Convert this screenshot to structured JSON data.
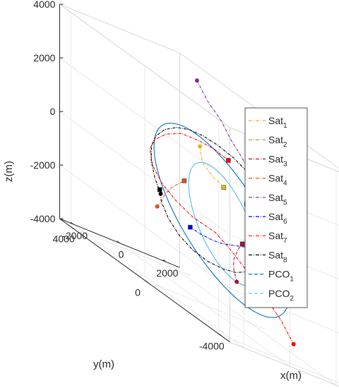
{
  "chart_data": {
    "type": "line",
    "projection": "3d",
    "xlabel": "x(m)",
    "ylabel": "y(m)",
    "zlabel": "z(m)",
    "x_ticks": [
      "-2000",
      "0",
      "2000"
    ],
    "y_ticks": [
      "4000",
      "0",
      "-4000"
    ],
    "z_ticks": [
      "4000",
      "2000",
      "0",
      "-2000",
      "-4000"
    ],
    "xlim": [
      -2600,
      2600
    ],
    "ylim": [
      -4600,
      4600
    ],
    "zlim": [
      -4000,
      4000
    ],
    "grid": true,
    "legend_position": "right",
    "legend": [
      {
        "base": "Sat",
        "sub": "1",
        "color": "#EDB120",
        "dash": "5,2,1,2"
      },
      {
        "base": "Sat",
        "sub": "2",
        "color": "#77AC30",
        "dash": "5,2,1,2"
      },
      {
        "base": "Sat",
        "sub": "3",
        "color": "#A2142F",
        "dash": "5,2,1,2"
      },
      {
        "base": "Sat",
        "sub": "4",
        "color": "#D95319",
        "dash": "5,2,1,2"
      },
      {
        "base": "Sat",
        "sub": "5",
        "color": "#7E2F8E",
        "dash": "5,2,1,2"
      },
      {
        "base": "Sat",
        "sub": "6",
        "color": "#0000FF",
        "dash": "5,2,1,2"
      },
      {
        "base": "Sat",
        "sub": "7",
        "color": "#FF0000",
        "dash": "5,2,1,2"
      },
      {
        "base": "Sat",
        "sub": "8",
        "color": "#000000",
        "dash": "5,2,1,2"
      },
      {
        "base": "PCO",
        "sub": "1",
        "color": "#0072BD",
        "dash": "5,3"
      },
      {
        "base": "PCO",
        "sub": "2",
        "color": "#4DBEEE",
        "dash": "5,3"
      }
    ],
    "series": [
      {
        "name": "Sat1",
        "color": "#EDB120",
        "start_marker": "dot",
        "end_marker": "square",
        "points": [
          [
            -450,
            -300,
            1900
          ],
          [
            -350,
            -250,
            1500
          ],
          [
            -200,
            -200,
            1250
          ],
          [
            -50,
            -300,
            1100
          ],
          [
            100,
            -350,
            950
          ],
          [
            350,
            -400,
            850
          ],
          [
            500,
            -400,
            750
          ]
        ]
      },
      {
        "name": "Sat2",
        "color": "#77AC30",
        "start_marker": "dot",
        "end_marker": "square",
        "points": [
          [
            2100,
            -2300,
            1700
          ],
          [
            1950,
            -2300,
            1450
          ],
          [
            1800,
            -2250,
            1250
          ],
          [
            1650,
            -2100,
            1050
          ],
          [
            1500,
            -1850,
            850
          ],
          [
            1350,
            -1500,
            700
          ],
          [
            1200,
            -1150,
            650
          ],
          [
            1050,
            -950,
            600
          ]
        ]
      },
      {
        "name": "Sat3",
        "color": "#A2142F",
        "start_marker": "dot",
        "end_marker": "square",
        "points": [
          [
            -300,
            -2100,
            -2200
          ],
          [
            -350,
            -2000,
            -1800
          ],
          [
            -200,
            -1800,
            -1500
          ],
          [
            0,
            -1700,
            -1250
          ],
          [
            200,
            -1600,
            -1000
          ],
          [
            300,
            -1650,
            -800
          ]
        ]
      },
      {
        "name": "Sat4",
        "color": "#D95319",
        "start_marker": "dot",
        "end_marker": "square",
        "points": [
          [
            -1900,
            200,
            -1100
          ],
          [
            -1650,
            300,
            -900
          ],
          [
            -1450,
            350,
            -550
          ],
          [
            -1200,
            300,
            -200
          ],
          [
            -1000,
            150,
            100
          ],
          [
            -850,
            50,
            300
          ]
        ]
      },
      {
        "name": "Sat5",
        "color": "#7E2F8E",
        "start_marker": "dot",
        "end_marker": "square",
        "points": [
          [
            -900,
            -700,
            4400
          ],
          [
            -450,
            -700,
            3800
          ],
          [
            0,
            -900,
            3300
          ],
          [
            300,
            -1000,
            2800
          ],
          [
            600,
            -1300,
            2300
          ],
          [
            750,
            -1600,
            1800
          ],
          [
            900,
            -2050,
            1300
          ],
          [
            1000,
            -2250,
            800
          ],
          [
            1050,
            -2350,
            600
          ]
        ]
      },
      {
        "name": "Sat6",
        "color": "#0000FF",
        "start_marker": "dot",
        "end_marker": "square",
        "points": [
          [
            1000,
            -3300,
            2800
          ],
          [
            1200,
            -3200,
            2300
          ],
          [
            1300,
            -3050,
            1700
          ],
          [
            1400,
            -2800,
            1200
          ],
          [
            1500,
            -2500,
            800
          ],
          [
            1550,
            -2250,
            500
          ],
          [
            1450,
            -2200,
            300
          ],
          [
            1300,
            -2350,
            100
          ],
          [
            1050,
            -2400,
            -100
          ],
          [
            800,
            -2350,
            -300
          ],
          [
            550,
            -2150,
            -600
          ],
          [
            300,
            -1900,
            -800
          ],
          [
            50,
            -1550,
            -1000
          ],
          [
            -150,
            -1150,
            -1200
          ],
          [
            -300,
            -800,
            -1300
          ],
          [
            -450,
            -350,
            -1350
          ],
          [
            -550,
            100,
            -1350
          ]
        ]
      },
      {
        "name": "Sat7",
        "color": "#FF0000",
        "start_marker": "dot",
        "end_marker": "square",
        "points": [
          [
            1200,
            -3300,
            -3400
          ],
          [
            1050,
            -2800,
            -2800
          ],
          [
            900,
            -2100,
            -2300
          ],
          [
            700,
            -1400,
            -1800
          ],
          [
            500,
            -800,
            -1400
          ],
          [
            300,
            -200,
            -1100
          ],
          [
            -200,
            400,
            -1000
          ],
          [
            -700,
            700,
            -700
          ],
          [
            -1150,
            900,
            -300
          ],
          [
            -1500,
            950,
            200
          ],
          [
            -1700,
            850,
            800
          ],
          [
            -1700,
            550,
            1300
          ],
          [
            -1550,
            150,
            1750
          ],
          [
            -1250,
            -300,
            2100
          ],
          [
            -900,
            -750,
            2200
          ],
          [
            -500,
            -1100,
            2200
          ],
          [
            -100,
            -1400,
            2050
          ]
        ]
      },
      {
        "name": "Sat8",
        "color": "#000000",
        "start_marker": "dot",
        "end_marker": "square",
        "points": [
          [
            -550,
            1700,
            -900
          ],
          [
            -800,
            1700,
            -400
          ],
          [
            -1000,
            1650,
            200
          ],
          [
            -1150,
            1450,
            800
          ],
          [
            -1200,
            1150,
            1300
          ],
          [
            -1100,
            800,
            1750
          ],
          [
            -900,
            400,
            2100
          ],
          [
            -650,
            0,
            2300
          ],
          [
            -350,
            -350,
            2350
          ],
          [
            0,
            -700,
            2300
          ],
          [
            400,
            -1050,
            2150
          ],
          [
            750,
            -1350,
            1900
          ],
          [
            1000,
            -1650,
            1600
          ],
          [
            1200,
            -2000,
            1200
          ],
          [
            1250,
            -2300,
            800
          ],
          [
            1200,
            -2500,
            400
          ],
          [
            1050,
            -2600,
            -100
          ],
          [
            850,
            -2550,
            -650
          ],
          [
            600,
            -2400,
            -1200
          ],
          [
            300,
            -2100,
            -1600
          ],
          [
            0,
            -1700,
            -1950
          ],
          [
            -250,
            -1300,
            -2100
          ],
          [
            -550,
            -850,
            -2150
          ],
          [
            -850,
            -400,
            -2050
          ],
          [
            -1100,
            0,
            -1800
          ],
          [
            -1300,
            350,
            -1400
          ],
          [
            -1400,
            600,
            -950
          ],
          [
            -1350,
            750,
            -550
          ]
        ]
      },
      {
        "name": "PCO1",
        "color": "#0072BD",
        "start_marker": "none",
        "end_marker": "none",
        "points": "ellipse1"
      },
      {
        "name": "PCO2",
        "color": "#4DBEEE",
        "start_marker": "none",
        "end_marker": "none",
        "points": "ellipse2"
      }
    ]
  }
}
